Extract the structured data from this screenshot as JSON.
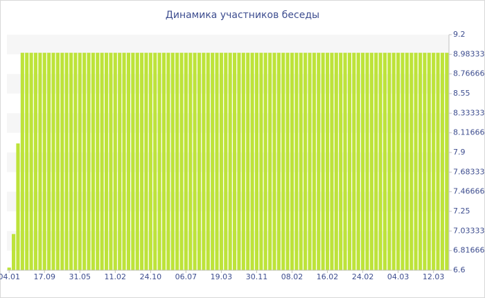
{
  "chart_data": {
    "type": "bar",
    "title": "Динамика участников беседы",
    "color": "#bde33a",
    "grid": true,
    "ylim": [
      6.6,
      9.2
    ],
    "yticks": [
      6.6,
      6.81666,
      7.03333,
      7.25,
      7.46666,
      7.68333,
      7.9,
      8.11666,
      8.33333,
      8.55,
      8.76666,
      8.98333,
      9.2
    ],
    "categories": [
      "04.01",
      null,
      null,
      null,
      null,
      null,
      null,
      null,
      "17.09",
      null,
      null,
      null,
      null,
      null,
      null,
      null,
      "31.05",
      null,
      null,
      null,
      null,
      null,
      null,
      null,
      "11.02",
      null,
      null,
      null,
      null,
      null,
      null,
      null,
      "24.10",
      null,
      null,
      null,
      null,
      null,
      null,
      null,
      "06.07",
      null,
      null,
      null,
      null,
      null,
      null,
      null,
      "19.03",
      null,
      null,
      null,
      null,
      null,
      null,
      null,
      "30.11",
      null,
      null,
      null,
      null,
      null,
      null,
      null,
      "08.02",
      null,
      null,
      null,
      null,
      null,
      null,
      null,
      "16.02",
      null,
      null,
      null,
      null,
      null,
      null,
      null,
      "24.02",
      null,
      null,
      null,
      null,
      null,
      null,
      null,
      "04.03",
      null,
      null,
      null,
      null,
      null,
      null,
      null,
      "12.03",
      null,
      null,
      null
    ],
    "values": [
      6.63,
      7,
      8,
      9,
      9,
      9,
      9,
      9,
      9,
      9,
      9,
      9,
      9,
      9,
      9,
      9,
      9,
      9,
      9,
      9,
      9,
      9,
      9,
      9,
      9,
      9,
      9,
      9,
      9,
      9,
      9,
      9,
      9,
      9,
      9,
      9,
      9,
      9,
      9,
      9,
      9,
      9,
      9,
      9,
      9,
      9,
      9,
      9,
      9,
      9,
      9,
      9,
      9,
      9,
      9,
      9,
      9,
      9,
      9,
      9,
      9,
      9,
      9,
      9,
      9,
      9,
      9,
      9,
      9,
      9,
      9,
      9,
      9,
      9,
      9,
      9,
      9,
      9,
      9,
      9,
      9,
      9,
      9,
      9,
      9,
      9,
      9,
      9,
      9,
      9,
      9,
      9,
      9,
      9,
      9,
      9,
      9,
      9,
      9,
      9
    ]
  }
}
